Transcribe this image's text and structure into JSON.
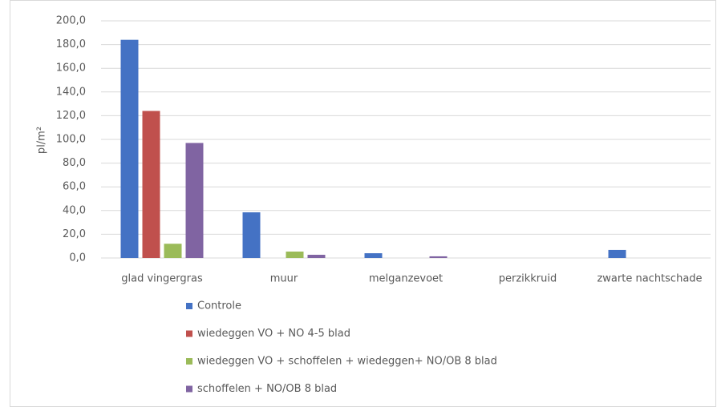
{
  "chart_data": {
    "type": "bar",
    "y_label": "pl/m²",
    "categories": [
      "glad vingergras",
      "muur",
      "melganzevoet",
      "perzikkruid",
      "zwarte nachtschade"
    ],
    "series": [
      {
        "name": "Controle",
        "color": "#4472c4",
        "values": [
          184,
          38.5,
          4,
          0,
          6.8
        ]
      },
      {
        "name": "wiedeggen VO + NO 4-5 blad",
        "color": "#c0504d",
        "values": [
          124,
          0,
          0,
          0,
          0
        ]
      },
      {
        "name": "wiedeggen VO + schoffelen + wiedeggen+ NO/OB 8 blad",
        "color": "#9bbb59",
        "values": [
          12,
          5.4,
          0,
          0,
          0
        ]
      },
      {
        "name": "schoffelen +  NO/OB 8 blad",
        "color": "#8064a2",
        "values": [
          97,
          2.7,
          1.4,
          0,
          0
        ]
      }
    ],
    "ylim": [
      0,
      200
    ],
    "yticks": [
      {
        "value": 0,
        "label": "0,0"
      },
      {
        "value": 20,
        "label": "20,0"
      },
      {
        "value": 40,
        "label": "40,0"
      },
      {
        "value": 60,
        "label": "60,0"
      },
      {
        "value": 80,
        "label": "80,0"
      },
      {
        "value": 100,
        "label": "100,0"
      },
      {
        "value": 120,
        "label": "120,0"
      },
      {
        "value": 140,
        "label": "140,0"
      },
      {
        "value": 160,
        "label": "160,0"
      },
      {
        "value": 180,
        "label": "180,0"
      },
      {
        "value": 200,
        "label": "200,0"
      }
    ],
    "grid": true,
    "legend": "bottom"
  }
}
